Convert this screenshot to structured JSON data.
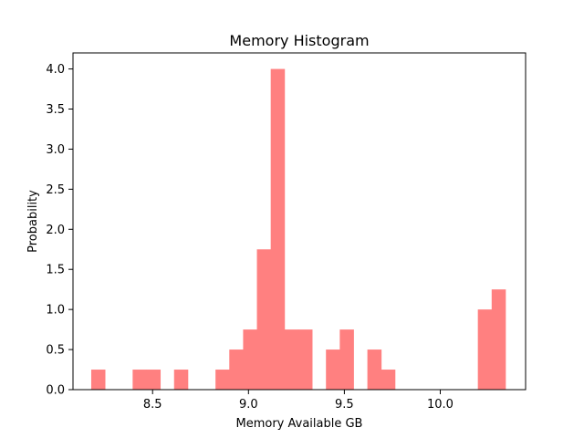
{
  "chart_data": {
    "type": "bar",
    "title": "Memory Histogram",
    "xlabel": "Memory Available GB",
    "ylabel": "Probability",
    "xlim": [
      8.085,
      10.445
    ],
    "ylim": [
      0,
      4.2
    ],
    "xticks": [
      8.5,
      9.0,
      9.5,
      10.0
    ],
    "xtick_labels": [
      "8.5",
      "9.0",
      "9.5",
      "10.0"
    ],
    "yticks": [
      0.0,
      0.5,
      1.0,
      1.5,
      2.0,
      2.5,
      3.0,
      3.5,
      4.0
    ],
    "ytick_labels": [
      "0.0",
      "0.5",
      "1.0",
      "1.5",
      "2.0",
      "2.5",
      "3.0",
      "3.5",
      "4.0"
    ],
    "bin_start": 8.18,
    "bin_width": 0.072,
    "bins": 30,
    "values": [
      0.25,
      0,
      0,
      0.25,
      0.25,
      0,
      0.25,
      0,
      0,
      0.25,
      0.5,
      0.75,
      1.75,
      4.0,
      0.75,
      0.75,
      0,
      0.5,
      0.75,
      0,
      0.5,
      0.25,
      0,
      0,
      0,
      0,
      0,
      0,
      1.0,
      1.25
    ],
    "bar_color": "#ff8080",
    "grid": false
  }
}
